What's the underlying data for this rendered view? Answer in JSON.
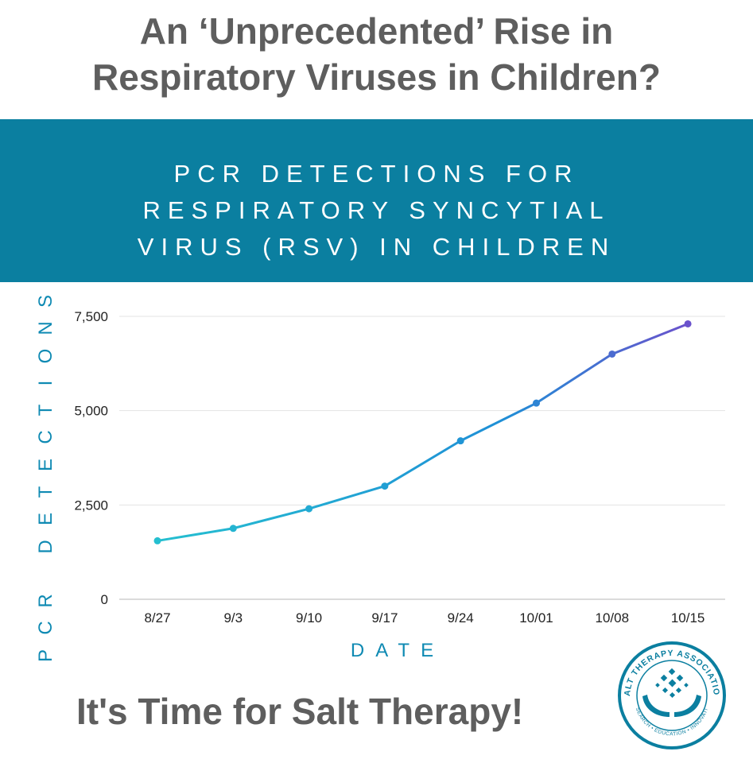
{
  "headline": {
    "line1": "An ‘Unprecedented’ Rise in",
    "line2": "Respiratory Viruses in Children?"
  },
  "banner": {
    "line1": "PCR DETECTIONS FOR",
    "line2": "RESPIRATORY SYNCYTIAL",
    "line3": "VIRUS (RSV) IN CHILDREN",
    "background": "#0b7fa0"
  },
  "footer": {
    "text": "It's Time for Salt Therapy!"
  },
  "logo": {
    "ring_text_top": "SALT THERAPY ASSOCIATION",
    "ring_text_bottom": "RESEARCH • EDUCATION • INNOVATION",
    "icon": "hands-holding-salt-crystals-icon",
    "color": "#0b7fa0"
  },
  "chart_data": {
    "type": "line",
    "title": "",
    "xlabel": "DATE",
    "ylabel": "PCR DETECTIONS",
    "categories": [
      "8/27",
      "9/3",
      "9/10",
      "9/17",
      "9/24",
      "10/01",
      "10/08",
      "10/15"
    ],
    "series": [
      {
        "values": [
          1550,
          1880,
          2400,
          3000,
          4200,
          5200,
          6500,
          7300
        ]
      }
    ],
    "yticks": [
      0,
      2500,
      5000,
      7500
    ],
    "ytick_labels": [
      "0",
      "2,500",
      "5,000",
      "7,500"
    ],
    "ylim": [
      0,
      7500
    ],
    "grid": true,
    "line_gradient": [
      "#25bfd0",
      "#1f8fd6",
      "#6a52cc"
    ]
  }
}
